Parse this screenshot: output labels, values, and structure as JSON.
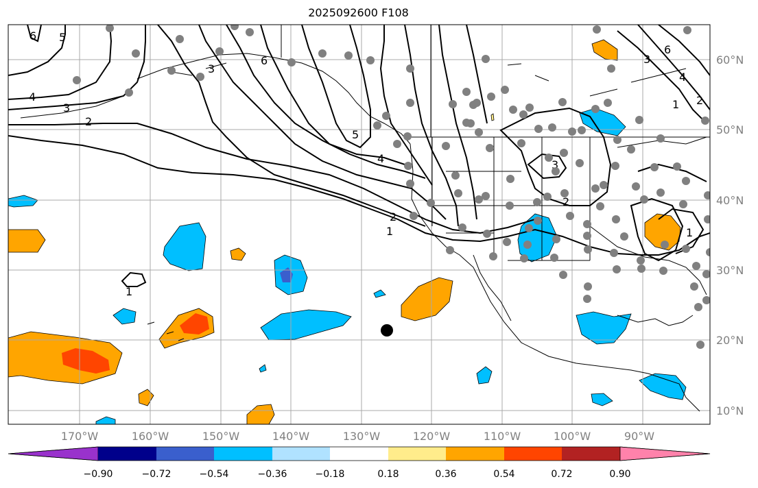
{
  "title": "2025092600 F108",
  "map": {
    "lon_labels": [
      "170°W",
      "160°W",
      "150°W",
      "140°W",
      "130°W",
      "120°W",
      "110°W",
      "100°W",
      "90°W"
    ],
    "lat_labels": [
      "60°N",
      "50°N",
      "40°N",
      "30°N",
      "20°N",
      "10°N"
    ],
    "contour_labels": [
      "6",
      "5",
      "4",
      "3",
      "2",
      "1",
      "6",
      "5",
      "4",
      "3",
      "2",
      "1",
      "3",
      "2",
      "1",
      "6",
      "3",
      "4",
      "2",
      "1"
    ]
  },
  "colorbar": {
    "ticks": [
      "−0.90",
      "−0.72",
      "−0.54",
      "−0.36",
      "−0.18",
      "0.18",
      "0.36",
      "0.54",
      "0.72",
      "0.90"
    ],
    "colors": [
      "#9932cc",
      "#00008b",
      "#3a5fcd",
      "#00bfff",
      "#b0e2ff",
      "#ffffff",
      "#ffec8b",
      "#ffa500",
      "#ff4500",
      "#b22222",
      "#ff82ab"
    ]
  },
  "station_color": "#808080",
  "marker_icon": "black-dot-icon"
}
